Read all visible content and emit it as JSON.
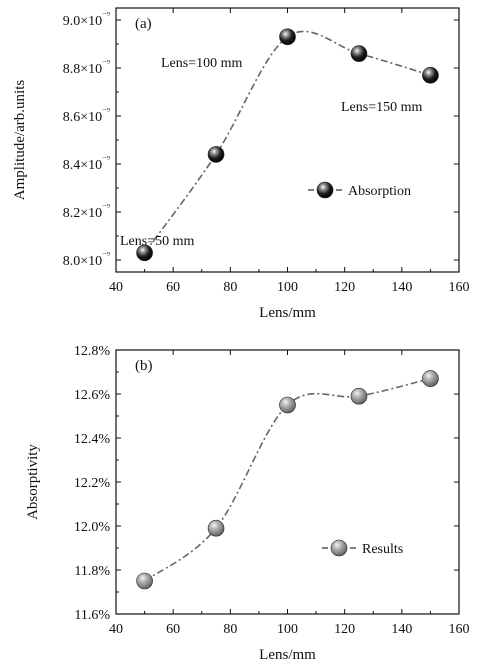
{
  "chart_data": [
    {
      "type": "scatter",
      "panel_label": "(a)",
      "xlabel": "Lens/mm",
      "ylabel": "Amplitude/arb.units",
      "xlim": [
        40,
        160
      ],
      "ylim": [
        7.95,
        9.05
      ],
      "x_ticks": [
        40,
        60,
        80,
        100,
        120,
        140,
        160
      ],
      "x_tick_labels": [
        "40",
        "60",
        "80",
        "100",
        "120",
        "140",
        "160"
      ],
      "y_ticks": [
        8.0,
        8.2,
        8.4,
        8.6,
        8.8,
        9.0
      ],
      "y_tick_labels": [
        "8.0×10⁻⁹",
        "8.2×10⁻⁹",
        "8.4×10⁻⁹",
        "8.6×10⁻⁹",
        "8.8×10⁻⁹",
        "9.0×10⁻⁹"
      ],
      "series": [
        {
          "name": "Absorption",
          "x": [
            50,
            75,
            100,
            125,
            150
          ],
          "y": [
            8.03,
            8.44,
            8.93,
            8.86,
            8.77
          ],
          "color": "#111111",
          "marker": "sphere",
          "fit_line": "dash-dot"
        }
      ],
      "annotations": [
        {
          "text": "Lens=50 mm",
          "x": 50,
          "y": 8.03
        },
        {
          "text": "Lens=100 mm",
          "x": 100,
          "y": 8.93
        },
        {
          "text": "Lens=150 mm",
          "x": 150,
          "y": 8.77
        }
      ],
      "legend": "middle-right",
      "grid": false
    },
    {
      "type": "scatter",
      "panel_label": "(b)",
      "xlabel": "Lens/mm",
      "ylabel": "Absorptivity",
      "xlim": [
        40,
        160
      ],
      "ylim": [
        11.6,
        12.8
      ],
      "x_ticks": [
        40,
        60,
        80,
        100,
        120,
        140,
        160
      ],
      "x_tick_labels": [
        "40",
        "60",
        "80",
        "100",
        "120",
        "140",
        "160"
      ],
      "y_ticks": [
        11.6,
        11.8,
        12.0,
        12.2,
        12.4,
        12.6,
        12.8
      ],
      "y_tick_labels": [
        "11.6%",
        "11.8%",
        "12.0%",
        "12.2%",
        "12.4%",
        "12.6%",
        "12.8%"
      ],
      "series": [
        {
          "name": "Results",
          "x": [
            50,
            75,
            100,
            125,
            150
          ],
          "y": [
            11.75,
            11.99,
            12.55,
            12.59,
            12.67
          ],
          "color": "#888888",
          "marker": "sphere",
          "fit_line": "dash-dot"
        }
      ],
      "legend": "lower-right",
      "grid": false
    }
  ]
}
